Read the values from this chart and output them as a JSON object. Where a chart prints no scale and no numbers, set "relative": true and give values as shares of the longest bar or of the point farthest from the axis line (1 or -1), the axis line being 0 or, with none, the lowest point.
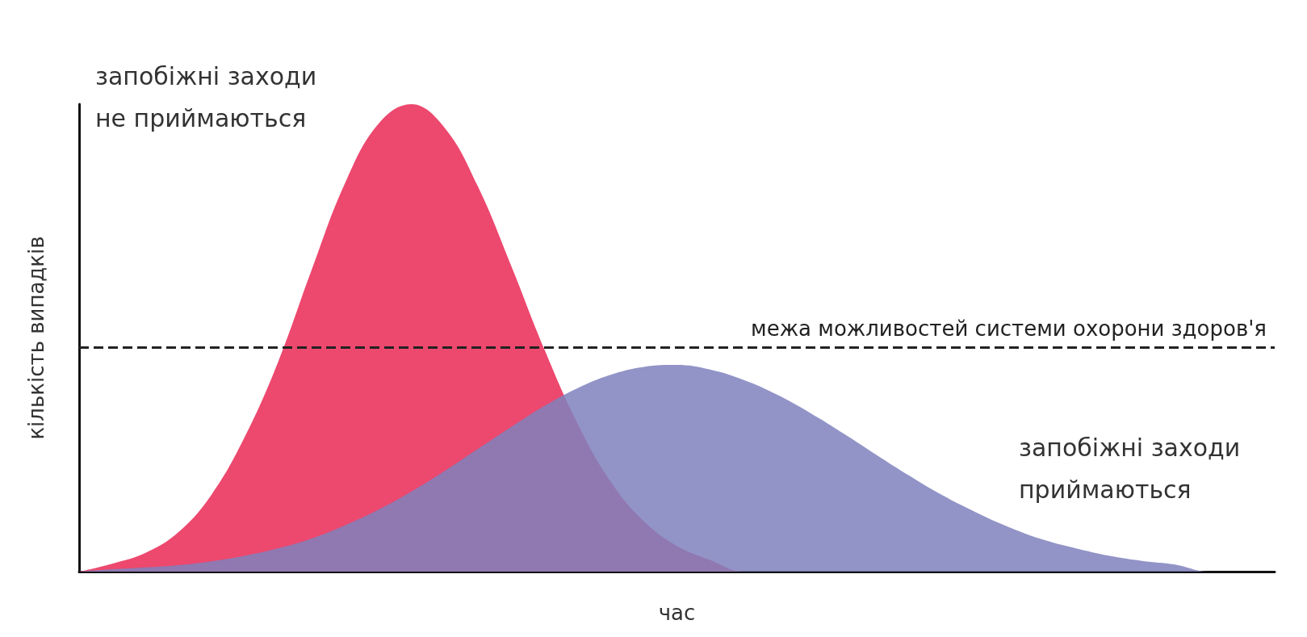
{
  "chart_data": {
    "type": "area",
    "relative": true,
    "xlabel": "час",
    "ylabel": "кількість випадків",
    "legend": false,
    "grid": false,
    "categories": [
      null,
      null,
      null,
      null,
      null,
      null,
      null,
      null,
      null,
      null,
      null,
      null,
      null,
      null,
      null,
      null,
      null,
      null,
      null,
      null,
      null,
      null,
      null,
      null,
      null,
      null,
      null,
      null,
      null,
      null,
      null,
      null,
      null,
      null,
      null,
      null,
      null
    ],
    "series": [
      {
        "name": "запобіжні заходи не приймаються",
        "color": "#ec4269",
        "values": [
          0,
          0.017,
          0.04,
          0.085,
          0.166,
          0.29,
          0.45,
          0.645,
          0.83,
          0.957,
          1,
          0.95,
          0.825,
          0.656,
          0.477,
          0.318,
          0.193,
          0.108,
          0.055,
          0.025,
          0,
          0,
          0,
          0,
          0,
          0,
          0,
          0,
          0,
          0,
          0,
          0,
          0,
          0,
          0,
          0,
          0
        ]
      },
      {
        "name": "запобіжні заходи приймаються",
        "color": "#7f81bd",
        "values": [
          0,
          0.005,
          0.009,
          0.014,
          0.022,
          0.034,
          0.05,
          0.071,
          0.099,
          0.132,
          0.171,
          0.215,
          0.262,
          0.309,
          0.354,
          0.392,
          0.421,
          0.438,
          0.442,
          0.432,
          0.41,
          0.379,
          0.34,
          0.296,
          0.25,
          0.205,
          0.163,
          0.127,
          0.095,
          0.069,
          0.05,
          0.034,
          0.023,
          0.015,
          0,
          0,
          0
        ]
      }
    ],
    "ref_lines": [
      {
        "axis": "y",
        "value": 0.476,
        "label": "межа можливостей системи охорони здоров'я",
        "color": "#222222",
        "line_style": "dashed"
      }
    ]
  }
}
